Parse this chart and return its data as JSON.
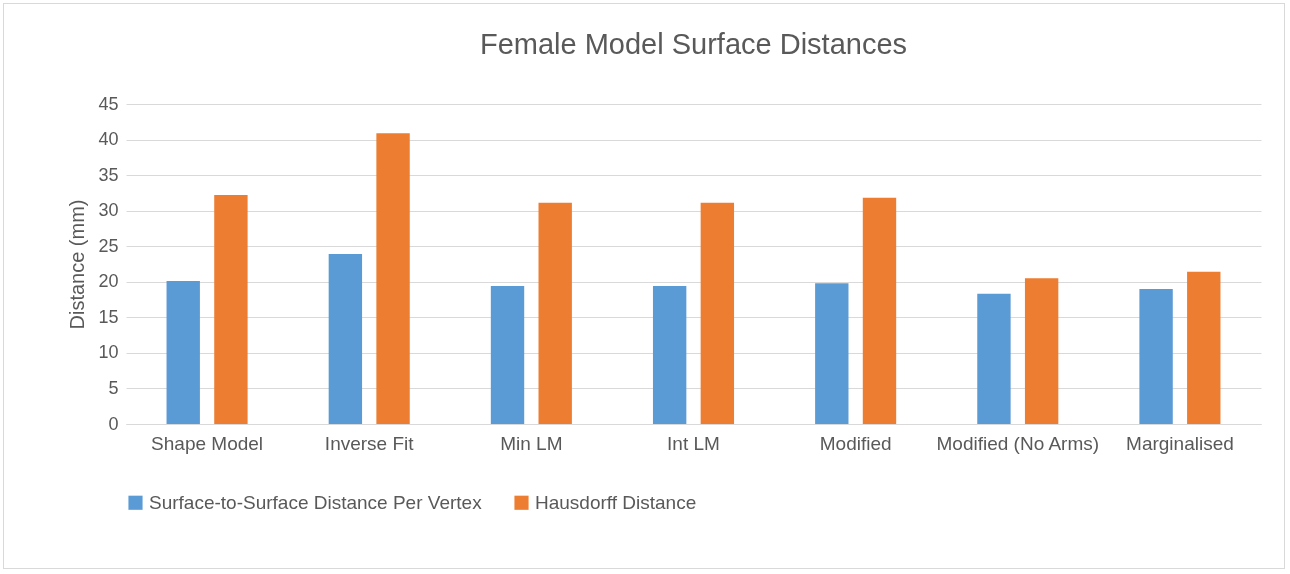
{
  "chart_data": {
    "type": "bar",
    "title": "Female Model Surface Distances",
    "ylabel": "Distance (mm)",
    "categories": [
      "Shape Model",
      "Inverse Fit",
      "Min LM",
      "Int LM",
      "Modified",
      "Modified (No Arms)",
      "Marginalised"
    ],
    "series": [
      {
        "name": "Surface-to-Surface Distance Per Vertex",
        "color": "#5b9bd5",
        "values": [
          20.1,
          23.9,
          19.4,
          19.4,
          19.8,
          18.3,
          19.0
        ]
      },
      {
        "name": "Hausdorff Distance",
        "color": "#ed7d31",
        "values": [
          32.2,
          40.9,
          31.1,
          31.1,
          31.8,
          20.5,
          21.4
        ]
      }
    ],
    "ylim": [
      0,
      45
    ],
    "yticks": [
      0,
      5,
      10,
      15,
      20,
      25,
      30,
      35,
      40,
      45
    ],
    "grid": "y",
    "legend": "bottom"
  }
}
